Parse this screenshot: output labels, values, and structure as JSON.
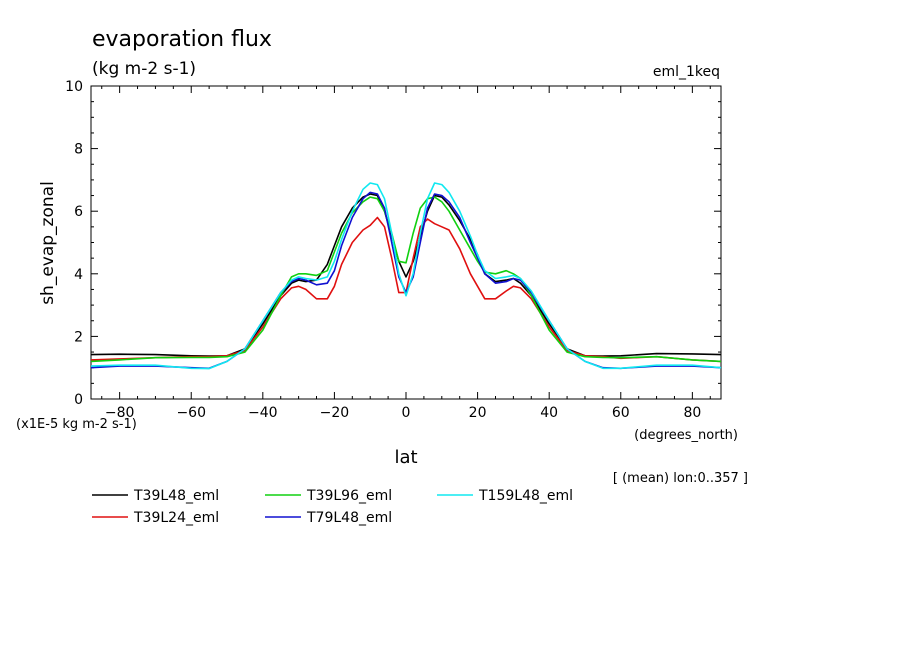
{
  "chart_data": {
    "type": "line",
    "title": "evaporation flux",
    "subtitle": "(kg m-2 s-1)",
    "experiment_label": "eml_1keq",
    "ylabel": "sh_evap_zonal",
    "xlabel": "lat",
    "x_units": "(degrees_north)",
    "y_scale_note": "(x1E-5 kg m-2 s-1)",
    "footer_note": "[ (mean) lon:0..357 ]",
    "xlim": [
      -88,
      88
    ],
    "ylim": [
      0,
      10
    ],
    "x_ticks": [
      -80,
      -60,
      -40,
      -20,
      0,
      20,
      40,
      60,
      80
    ],
    "y_ticks": [
      0,
      2,
      4,
      6,
      8,
      10
    ],
    "grid": false,
    "legend_position": "bottom",
    "series": [
      {
        "name": "T39L48_eml",
        "color": "#000000",
        "x": [
          -88,
          -80,
          -70,
          -60,
          -55,
          -50,
          -45,
          -40,
          -35,
          -32,
          -30,
          -28,
          -25,
          -22,
          -20,
          -18,
          -15,
          -12,
          -10,
          -8,
          -6,
          -4,
          -2,
          0,
          2,
          4,
          6,
          8,
          10,
          12,
          15,
          18,
          20,
          22,
          25,
          28,
          30,
          32,
          35,
          40,
          45,
          50,
          55,
          60,
          70,
          80,
          88
        ],
        "y": [
          1.42,
          1.43,
          1.42,
          1.38,
          1.37,
          1.38,
          1.6,
          2.4,
          3.3,
          3.7,
          3.8,
          3.75,
          3.8,
          4.3,
          4.9,
          5.5,
          6.1,
          6.45,
          6.55,
          6.5,
          6.0,
          5.2,
          4.4,
          3.9,
          4.4,
          5.2,
          6.0,
          6.5,
          6.45,
          6.2,
          5.7,
          5.1,
          4.6,
          4.0,
          3.75,
          3.8,
          3.85,
          3.7,
          3.3,
          2.4,
          1.6,
          1.38,
          1.37,
          1.38,
          1.45,
          1.44,
          1.42
        ]
      },
      {
        "name": "T39L24_eml",
        "color": "#e01010",
        "x": [
          -88,
          -80,
          -70,
          -60,
          -55,
          -50,
          -45,
          -40,
          -35,
          -32,
          -30,
          -28,
          -25,
          -22,
          -20,
          -18,
          -15,
          -12,
          -10,
          -8,
          -6,
          -4,
          -2,
          0,
          2,
          4,
          6,
          8,
          10,
          12,
          15,
          18,
          20,
          22,
          25,
          28,
          30,
          32,
          35,
          40,
          45,
          50,
          55,
          60,
          70,
          80,
          88
        ],
        "y": [
          1.25,
          1.28,
          1.32,
          1.35,
          1.35,
          1.38,
          1.55,
          2.3,
          3.2,
          3.55,
          3.6,
          3.5,
          3.2,
          3.2,
          3.6,
          4.3,
          5.0,
          5.4,
          5.55,
          5.8,
          5.5,
          4.5,
          3.4,
          3.4,
          4.5,
          5.5,
          5.75,
          5.6,
          5.5,
          5.4,
          4.8,
          4.0,
          3.6,
          3.2,
          3.2,
          3.45,
          3.6,
          3.55,
          3.2,
          2.3,
          1.55,
          1.38,
          1.35,
          1.3,
          1.35,
          1.25,
          1.2
        ]
      },
      {
        "name": "T39L96_eml",
        "color": "#10d010",
        "x": [
          -88,
          -80,
          -70,
          -60,
          -55,
          -50,
          -45,
          -40,
          -35,
          -32,
          -30,
          -28,
          -25,
          -22,
          -20,
          -18,
          -15,
          -12,
          -10,
          -8,
          -6,
          -4,
          -2,
          0,
          2,
          4,
          6,
          8,
          10,
          12,
          15,
          18,
          20,
          22,
          25,
          28,
          30,
          32,
          35,
          40,
          45,
          50,
          55,
          60,
          70,
          80,
          88
        ],
        "y": [
          1.2,
          1.25,
          1.32,
          1.33,
          1.33,
          1.35,
          1.5,
          2.2,
          3.3,
          3.9,
          4.0,
          4.0,
          3.95,
          4.1,
          4.7,
          5.3,
          5.95,
          6.3,
          6.45,
          6.4,
          6.0,
          5.3,
          4.4,
          4.35,
          5.3,
          6.1,
          6.4,
          6.45,
          6.3,
          6.0,
          5.4,
          4.8,
          4.4,
          4.05,
          4.0,
          4.1,
          4.0,
          3.85,
          3.3,
          2.2,
          1.5,
          1.35,
          1.33,
          1.32,
          1.35,
          1.25,
          1.2
        ]
      },
      {
        "name": "T79L48_eml",
        "color": "#1010d0",
        "x": [
          -88,
          -80,
          -70,
          -60,
          -55,
          -50,
          -45,
          -40,
          -35,
          -32,
          -30,
          -28,
          -25,
          -22,
          -20,
          -18,
          -15,
          -12,
          -10,
          -8,
          -6,
          -4,
          -2,
          0,
          2,
          4,
          6,
          8,
          10,
          12,
          15,
          18,
          20,
          22,
          25,
          28,
          30,
          32,
          35,
          40,
          45,
          50,
          55,
          60,
          70,
          80,
          88
        ],
        "y": [
          1.0,
          1.05,
          1.05,
          1.0,
          0.98,
          1.2,
          1.6,
          2.5,
          3.4,
          3.75,
          3.85,
          3.8,
          3.65,
          3.7,
          4.1,
          4.9,
          5.8,
          6.4,
          6.6,
          6.55,
          6.1,
          5.0,
          3.9,
          3.4,
          3.9,
          5.0,
          6.1,
          6.55,
          6.5,
          6.3,
          5.8,
          5.0,
          4.5,
          4.0,
          3.7,
          3.75,
          3.85,
          3.8,
          3.4,
          2.5,
          1.6,
          1.2,
          1.0,
          0.98,
          1.05,
          1.05,
          1.0
        ]
      },
      {
        "name": "T159L48_eml",
        "color": "#10e8f0",
        "x": [
          -88,
          -80,
          -70,
          -60,
          -55,
          -50,
          -45,
          -40,
          -35,
          -32,
          -30,
          -28,
          -25,
          -22,
          -20,
          -18,
          -15,
          -12,
          -10,
          -8,
          -6,
          -4,
          -2,
          0,
          2,
          4,
          6,
          8,
          10,
          12,
          15,
          18,
          20,
          22,
          25,
          28,
          30,
          32,
          35,
          40,
          45,
          50,
          55,
          60,
          70,
          80,
          88
        ],
        "y": [
          1.05,
          1.08,
          1.08,
          0.98,
          0.97,
          1.2,
          1.6,
          2.5,
          3.4,
          3.8,
          3.9,
          3.85,
          3.8,
          3.9,
          4.4,
          5.1,
          6.0,
          6.7,
          6.9,
          6.85,
          6.4,
          5.3,
          4.0,
          3.3,
          4.0,
          5.3,
          6.4,
          6.9,
          6.85,
          6.6,
          6.0,
          5.2,
          4.6,
          4.1,
          3.85,
          3.9,
          3.95,
          3.85,
          3.45,
          2.5,
          1.6,
          1.2,
          0.98,
          0.98,
          1.08,
          1.08,
          1.0
        ]
      }
    ]
  }
}
